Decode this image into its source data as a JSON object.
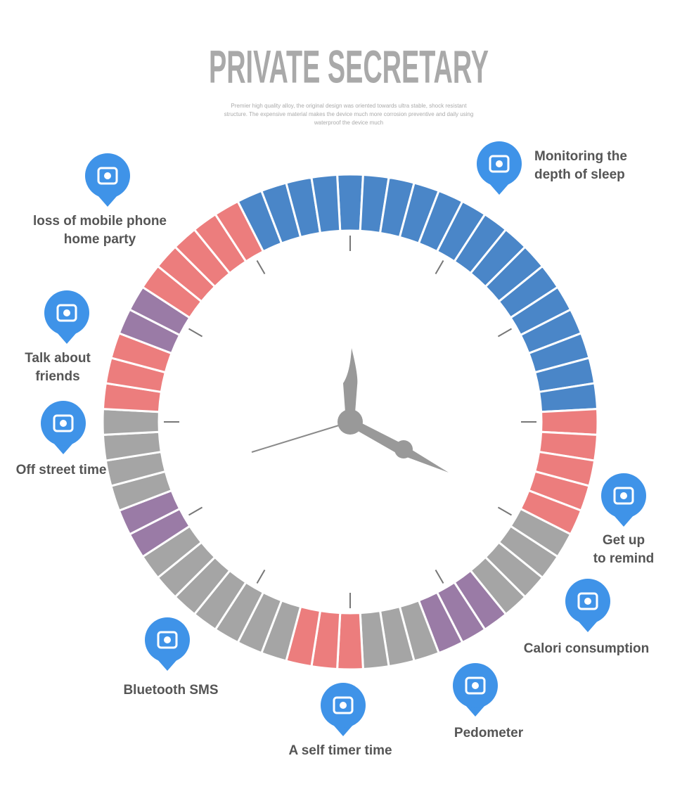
{
  "header": {
    "title": "PRIVATE SECRETARY",
    "subtitle": [
      "Premier high quality alloy, the original design was oriented towards ultra stable, shock resistant",
      "structure. The expensive material makes the device much more corrosion preventive and daily using",
      "waterproof the device much"
    ]
  },
  "features": [
    {
      "lines": [
        "loss of mobile phone",
        "home party"
      ]
    },
    {
      "lines": [
        "Talk about",
        "friends"
      ]
    },
    {
      "lines": [
        "Off street time"
      ]
    },
    {
      "lines": [
        "Bluetooth SMS"
      ]
    },
    {
      "lines": [
        "A self timer time"
      ]
    },
    {
      "lines": [
        "Pedometer"
      ]
    },
    {
      "lines": [
        "Calori consumption"
      ]
    },
    {
      "lines": [
        "Get up",
        "to remind"
      ]
    },
    {
      "lines": [
        "Monitoring the",
        "depth of sleep"
      ]
    }
  ]
}
